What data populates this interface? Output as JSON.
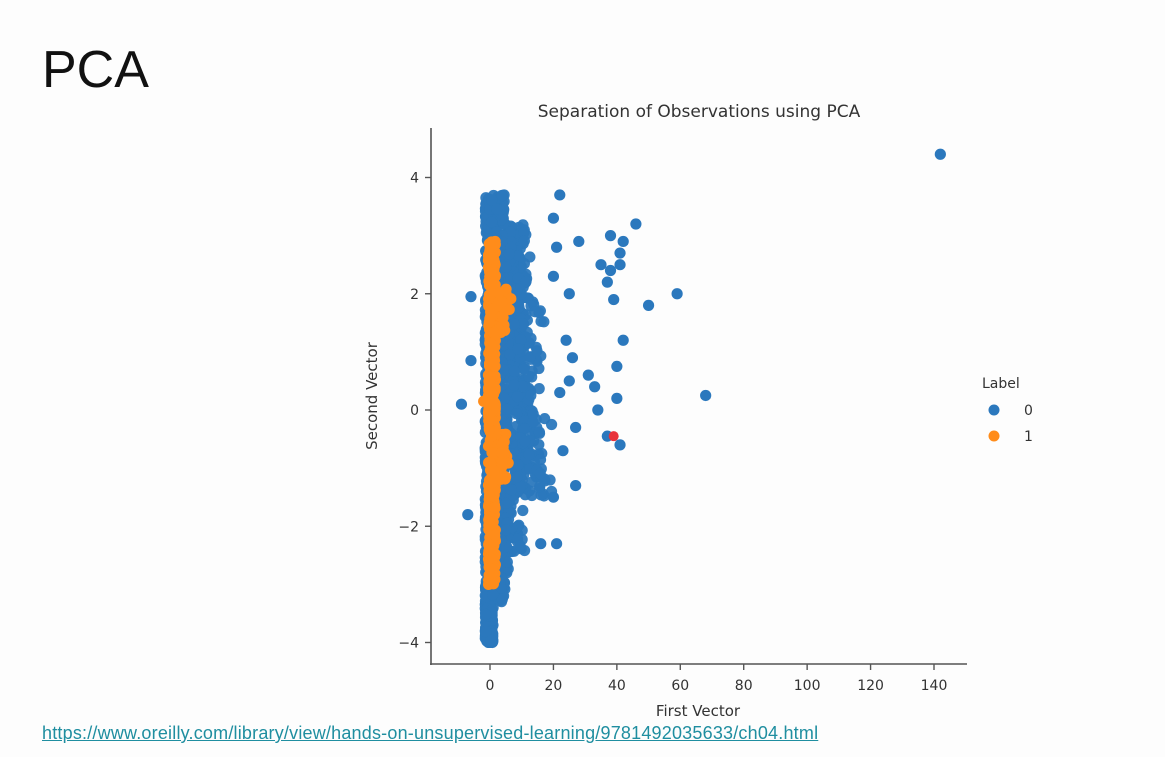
{
  "slide": {
    "title": "PCA",
    "source_link": "https://www.oreilly.com/library/view/hands-on-unsupervised-learning/9781492035633/ch04.html"
  },
  "colors": {
    "label_0": "#2b78bd",
    "label_1": "#ff8c1a",
    "highlight": "#e8323c",
    "axis": "#555555",
    "link": "#1f8ea0"
  },
  "chart_data": {
    "type": "scatter",
    "title": "Separation of Observations using PCA",
    "xlabel": "First Vector",
    "ylabel": "Second Vector",
    "xlim": [
      -18,
      150
    ],
    "ylim": [
      -4.3,
      4.9
    ],
    "xticks": [
      0,
      20,
      40,
      60,
      80,
      100,
      120,
      140
    ],
    "yticks": [
      -4,
      -2,
      0,
      2,
      4
    ],
    "grid": false,
    "legend": {
      "title": "Label",
      "position": "right",
      "entries": [
        "0",
        "1"
      ]
    },
    "series": [
      {
        "name": "0",
        "description": "dense cluster spanning x≈-2..12, y≈-4..3.7 plus scattered outliers",
        "dense_region": {
          "x": [
            -2,
            12
          ],
          "y": [
            -4,
            3.7
          ]
        },
        "outliers": [
          [
            142,
            4.4
          ],
          [
            68,
            0.25
          ],
          [
            59,
            2.0
          ],
          [
            50,
            1.8
          ],
          [
            46,
            3.2
          ],
          [
            42,
            2.9
          ],
          [
            41,
            2.7
          ],
          [
            41,
            2.5
          ],
          [
            38,
            3.0
          ],
          [
            38,
            2.4
          ],
          [
            37,
            2.2
          ],
          [
            39,
            1.9
          ],
          [
            42,
            1.2
          ],
          [
            35,
            2.5
          ],
          [
            28,
            2.9
          ],
          [
            40,
            0.75
          ],
          [
            40,
            0.2
          ],
          [
            41,
            -0.6
          ],
          [
            37,
            -0.45
          ],
          [
            33,
            0.4
          ],
          [
            31,
            0.6
          ],
          [
            34,
            0.0
          ],
          [
            22,
            3.7
          ],
          [
            20,
            3.3
          ],
          [
            21,
            2.8
          ],
          [
            20,
            2.3
          ],
          [
            25,
            2.0
          ],
          [
            24,
            1.2
          ],
          [
            26,
            0.9
          ],
          [
            25,
            0.5
          ],
          [
            22,
            0.3
          ],
          [
            27,
            -0.3
          ],
          [
            23,
            -0.7
          ],
          [
            27,
            -1.3
          ],
          [
            20,
            -1.5
          ],
          [
            21,
            -2.3
          ],
          [
            16,
            -2.3
          ],
          [
            -9,
            0.1
          ],
          [
            -7,
            -1.8
          ],
          [
            -6,
            0.85
          ],
          [
            -6,
            1.95
          ]
        ]
      },
      {
        "name": "1",
        "description": "narrow vertical band near x≈0..6, y≈-3..3",
        "dense_region": {
          "x": [
            -1,
            6
          ],
          "y": [
            -3,
            2.9
          ]
        }
      }
    ],
    "annotations": [
      {
        "type": "highlight-point",
        "x": 39,
        "y": -0.45,
        "color": "#e8323c"
      }
    ]
  }
}
